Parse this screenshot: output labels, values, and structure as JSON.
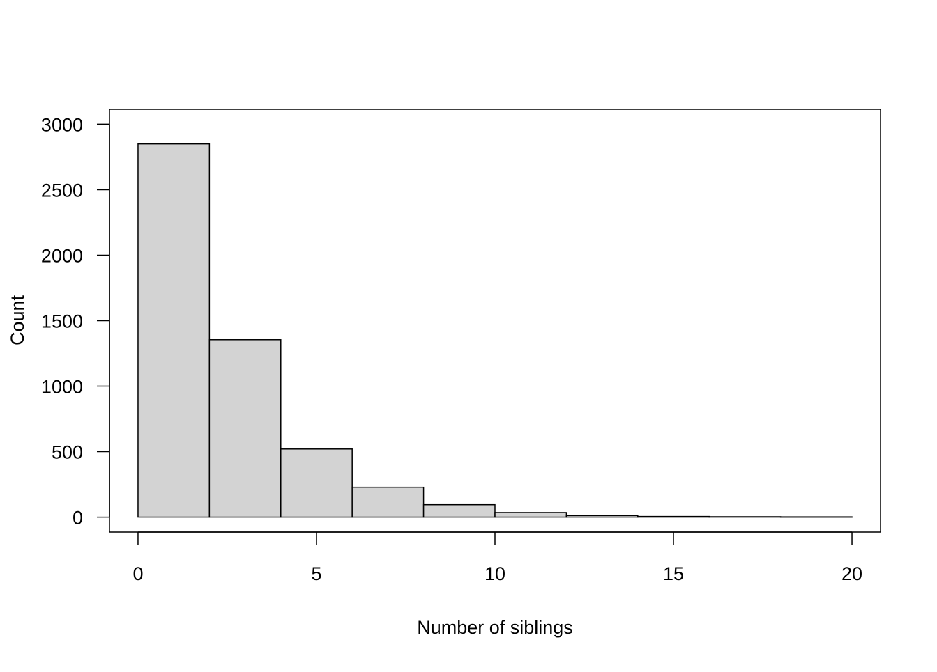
{
  "chart_data": {
    "type": "bar",
    "title": "",
    "xlabel": "Number of siblings",
    "ylabel": "Count",
    "bins": [
      {
        "start": 0,
        "end": 2,
        "count": 2850
      },
      {
        "start": 2,
        "end": 4,
        "count": 1355
      },
      {
        "start": 4,
        "end": 6,
        "count": 520
      },
      {
        "start": 6,
        "end": 8,
        "count": 228
      },
      {
        "start": 8,
        "end": 10,
        "count": 95
      },
      {
        "start": 10,
        "end": 12,
        "count": 35
      },
      {
        "start": 12,
        "end": 14,
        "count": 12
      },
      {
        "start": 14,
        "end": 16,
        "count": 5
      },
      {
        "start": 16,
        "end": 18,
        "count": 3
      },
      {
        "start": 18,
        "end": 20,
        "count": 2
      }
    ],
    "xlim": [
      -0.8,
      20.8
    ],
    "ylim": [
      -114,
      3114
    ],
    "xticks": [
      0,
      5,
      10,
      15,
      20
    ],
    "xtick_labels": [
      "0",
      "5",
      "10",
      "15",
      "20"
    ],
    "yticks": [
      0,
      500,
      1000,
      1500,
      2000,
      2500,
      3000
    ],
    "ytick_labels": [
      "0",
      "500",
      "1000",
      "1500",
      "2000",
      "2500",
      "3000"
    ],
    "grid": false,
    "colors": {
      "bar_fill": "#d3d3d3",
      "bar_stroke": "#000000",
      "axis": "#000000"
    }
  }
}
